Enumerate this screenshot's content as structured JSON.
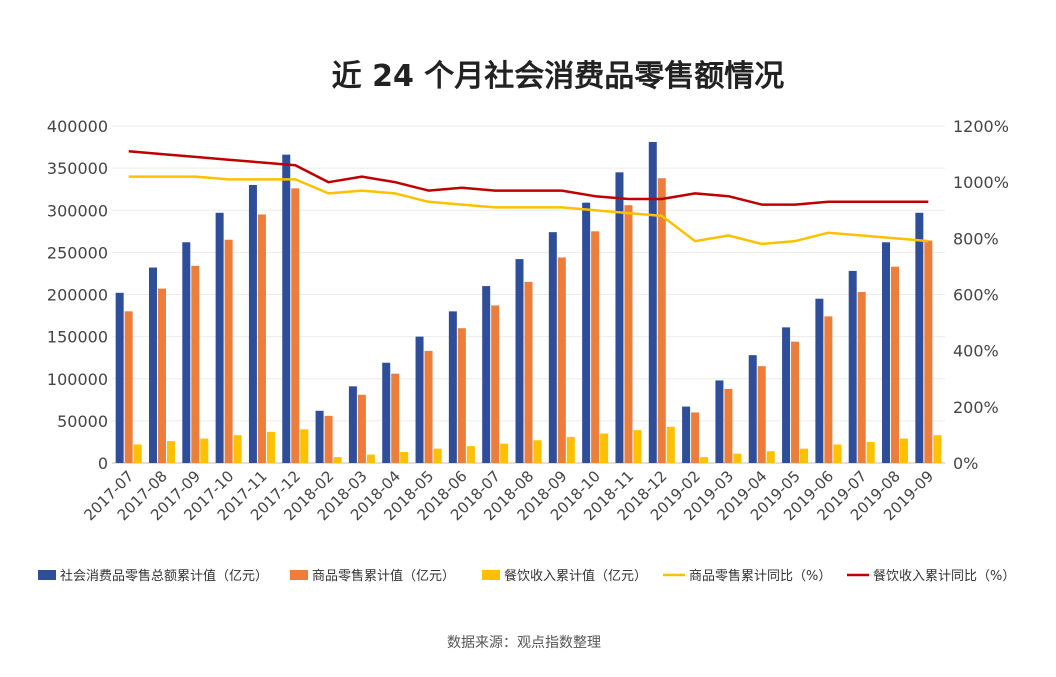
{
  "chart_data": {
    "type": "bar",
    "title": "近 24 个月社会消费品零售额情况",
    "source": "数据来源：观点指数整理",
    "categories": [
      "2017-07",
      "2017-08",
      "2017-09",
      "2017-10",
      "2017-11",
      "2017-12",
      "2018-02",
      "2018-03",
      "2018-04",
      "2018-05",
      "2018-06",
      "2018-07",
      "2018-08",
      "2018-09",
      "2018-10",
      "2018-11",
      "2018-12",
      "2019-02",
      "2019-03",
      "2019-04",
      "2019-05",
      "2019-06",
      "2019-07",
      "2019-08",
      "2019-09"
    ],
    "y_left": {
      "ylim": [
        0,
        400000
      ],
      "ticks": [
        "0",
        "50000",
        "100000",
        "150000",
        "200000",
        "250000",
        "300000",
        "350000",
        "400000"
      ]
    },
    "y_right": {
      "ylim": [
        0,
        1200
      ],
      "ticks": [
        "0%",
        "200%",
        "400%",
        "600%",
        "800%",
        "1000%",
        "1200%"
      ]
    },
    "grid": true,
    "legend_position": "bottom",
    "series": [
      {
        "name": "社会消费品零售总额累计值（亿元）",
        "kind": "bar",
        "axis": "left",
        "color": "#2f4e9a",
        "values": [
          202000,
          232000,
          262000,
          297000,
          330000,
          366000,
          62000,
          91000,
          119000,
          150000,
          180000,
          210000,
          242000,
          274000,
          309000,
          345000,
          381000,
          67000,
          98000,
          128000,
          161000,
          195000,
          228000,
          262000,
          297000
        ]
      },
      {
        "name": "商品零售累计值（亿元）",
        "kind": "bar",
        "axis": "left",
        "color": "#ed7d3a",
        "values": [
          180000,
          207000,
          234000,
          265000,
          295000,
          326000,
          56000,
          81000,
          106000,
          133000,
          160000,
          187000,
          215000,
          244000,
          275000,
          306000,
          338000,
          60000,
          88000,
          115000,
          144000,
          174000,
          203000,
          233000,
          264000
        ]
      },
      {
        "name": "餐饮收入累计值（亿元）",
        "kind": "bar",
        "axis": "left",
        "color": "#ffc000",
        "values": [
          22000,
          26000,
          29000,
          33000,
          37000,
          40000,
          7000,
          10000,
          13000,
          17000,
          20000,
          23000,
          27000,
          31000,
          35000,
          39000,
          43000,
          7000,
          11000,
          14000,
          17000,
          22000,
          25000,
          29000,
          33000
        ]
      },
      {
        "name": "商品零售累计同比（%）",
        "kind": "line",
        "axis": "right",
        "color": "#ffc000",
        "values": [
          1020,
          1020,
          1020,
          1010,
          1010,
          1010,
          960,
          970,
          960,
          930,
          920,
          910,
          910,
          910,
          900,
          890,
          880,
          790,
          810,
          780,
          790,
          820,
          810,
          800,
          790
        ]
      },
      {
        "name": "餐饮收入累计同比（%）",
        "kind": "line",
        "axis": "right",
        "color": "#c00000",
        "values": [
          1110,
          1100,
          1090,
          1080,
          1070,
          1060,
          1000,
          1020,
          1000,
          970,
          980,
          970,
          970,
          970,
          950,
          940,
          940,
          960,
          950,
          920,
          920,
          930,
          930,
          930,
          930
        ]
      }
    ]
  }
}
